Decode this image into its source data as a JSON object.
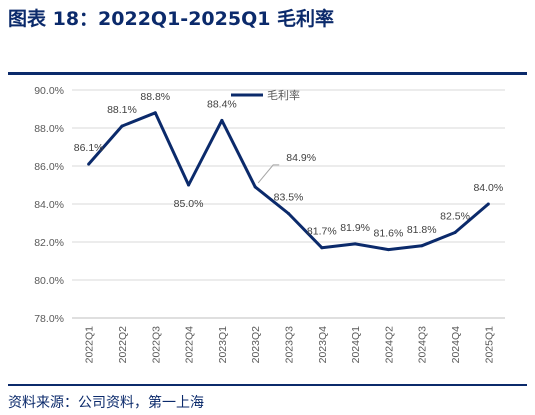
{
  "figure": {
    "title": "图表 18：2022Q1-2025Q1 毛利率",
    "source": "资料来源：公司资料，第一上海"
  },
  "colors": {
    "line": "#0b2a6b",
    "grid": "#d9d9d9",
    "axis_text": "#595959",
    "rule": "#0b2a6b"
  },
  "chart_data": {
    "type": "line",
    "categories": [
      "2022Q1",
      "2022Q2",
      "2022Q3",
      "2022Q4",
      "2023Q1",
      "2023Q2",
      "2023Q3",
      "2023Q4",
      "2024Q1",
      "2024Q2",
      "2024Q3",
      "2024Q4",
      "2025Q1"
    ],
    "series": [
      {
        "name": "毛利率",
        "values": [
          86.1,
          88.1,
          88.8,
          85.0,
          88.4,
          84.9,
          83.5,
          81.7,
          81.9,
          81.6,
          81.8,
          82.5,
          84.0
        ],
        "labels": [
          "86.1%",
          "88.1%",
          "88.8%",
          "85.0%",
          "88.4%",
          "84.9%",
          "83.5%",
          "81.7%",
          "81.9%",
          "81.6%",
          "81.8%",
          "82.5%",
          "84.0%"
        ]
      }
    ],
    "yticks": [
      "78.0%",
      "80.0%",
      "82.0%",
      "84.0%",
      "86.0%",
      "88.0%",
      "90.0%"
    ],
    "ylim": [
      78,
      90
    ],
    "grid": true,
    "legend": "top-center"
  }
}
